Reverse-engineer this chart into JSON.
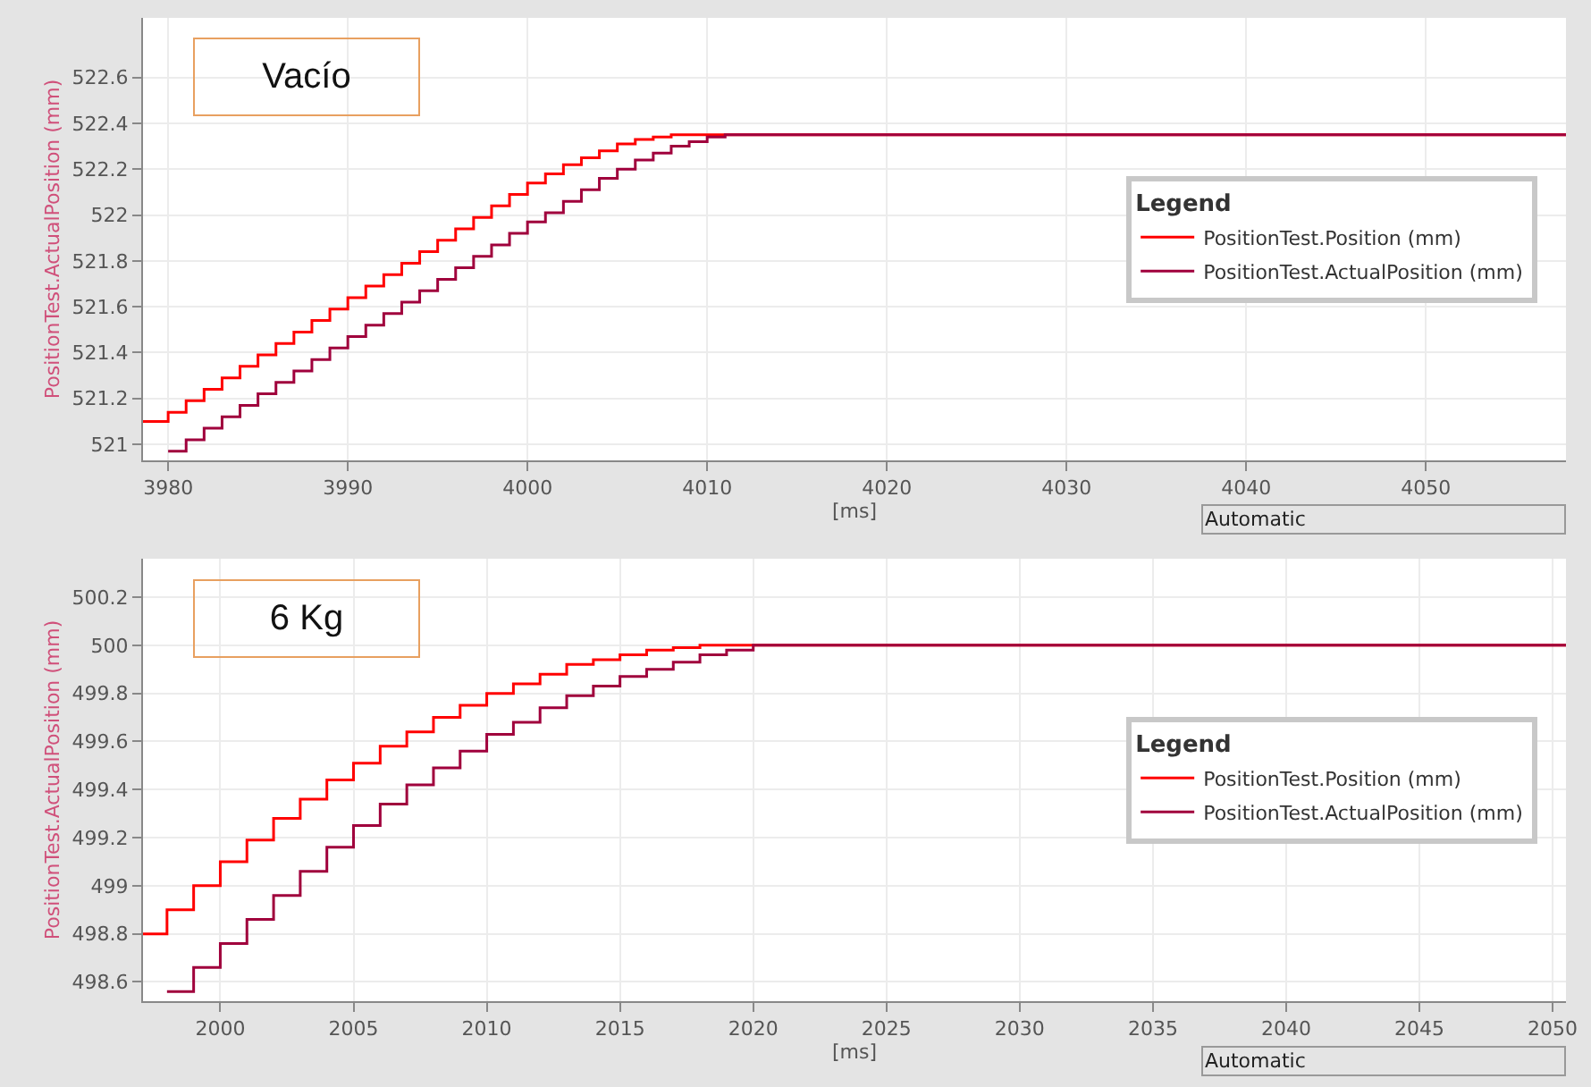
{
  "chart_data": [
    {
      "type": "step",
      "title": "Vacío",
      "xlabel": "[ms]",
      "ylabel": "PositionTest.ActualPosition (mm)",
      "legend_title": "Legend",
      "legend": "right",
      "grid": true,
      "annotations": [
        "Automatic"
      ],
      "xlim": [
        3978.6,
        4057.8
      ],
      "xticks": [
        3980,
        3990,
        4000,
        4010,
        4020,
        4030,
        4040,
        4050
      ],
      "ylim": [
        520.93,
        522.86
      ],
      "yticks": [
        521,
        521.2,
        521.4,
        521.6,
        521.8,
        522,
        522.2,
        522.4,
        522.6
      ],
      "series": [
        {
          "name": "PositionTest.Position (mm)",
          "color": "#ff0000",
          "x": [
            3978.6,
            3980,
            3981,
            3982,
            3983,
            3984,
            3985,
            3986,
            3987,
            3988,
            3989,
            3990,
            3991,
            3992,
            3993,
            3994,
            3995,
            3996,
            3997,
            3998,
            3999,
            4000,
            4001,
            4002,
            4003,
            4004,
            4005,
            4006,
            4007,
            4008,
            4057.8
          ],
          "values": [
            521.1,
            521.14,
            521.19,
            521.24,
            521.29,
            521.34,
            521.39,
            521.44,
            521.49,
            521.54,
            521.59,
            521.64,
            521.69,
            521.74,
            521.79,
            521.84,
            521.89,
            521.94,
            521.99,
            522.04,
            522.09,
            522.14,
            522.18,
            522.22,
            522.25,
            522.28,
            522.31,
            522.33,
            522.34,
            522.35,
            522.35
          ]
        },
        {
          "name": "PositionTest.ActualPosition (mm)",
          "color": "#a0003c",
          "x": [
            3980,
            3981,
            3982,
            3983,
            3984,
            3985,
            3986,
            3987,
            3988,
            3989,
            3990,
            3991,
            3992,
            3993,
            3994,
            3995,
            3996,
            3997,
            3998,
            3999,
            4000,
            4001,
            4002,
            4003,
            4004,
            4005,
            4006,
            4007,
            4008,
            4009,
            4010,
            4011,
            4057.8
          ],
          "values": [
            520.97,
            521.02,
            521.07,
            521.12,
            521.17,
            521.22,
            521.27,
            521.32,
            521.37,
            521.42,
            521.47,
            521.52,
            521.57,
            521.62,
            521.67,
            521.72,
            521.77,
            521.82,
            521.87,
            521.92,
            521.97,
            522.01,
            522.06,
            522.11,
            522.16,
            522.2,
            522.24,
            522.27,
            522.3,
            522.32,
            522.34,
            522.35,
            522.35
          ]
        }
      ]
    },
    {
      "type": "step",
      "title": "6 Kg",
      "xlabel": "[ms]",
      "ylabel": "PositionTest.ActualPosition (mm)",
      "legend_title": "Legend",
      "legend": "right",
      "grid": true,
      "annotations": [
        "Automatic"
      ],
      "xlim": [
        1997.1,
        2050.5
      ],
      "xticks": [
        2000,
        2005,
        2010,
        2015,
        2020,
        2025,
        2030,
        2035,
        2040,
        2045,
        2050
      ],
      "ylim": [
        498.52,
        500.36
      ],
      "yticks": [
        498.6,
        498.8,
        499,
        499.2,
        499.4,
        499.6,
        499.8,
        500,
        500.2
      ],
      "series": [
        {
          "name": "PositionTest.Position (mm)",
          "color": "#ff0000",
          "x": [
            1997.1,
            1998,
            1999,
            2000,
            2001,
            2002,
            2003,
            2004,
            2005,
            2006,
            2007,
            2008,
            2009,
            2010,
            2011,
            2012,
            2013,
            2014,
            2015,
            2016,
            2017,
            2018,
            2050.5
          ],
          "values": [
            498.8,
            498.9,
            499.0,
            499.1,
            499.19,
            499.28,
            499.36,
            499.44,
            499.51,
            499.58,
            499.64,
            499.7,
            499.75,
            499.8,
            499.84,
            499.88,
            499.92,
            499.94,
            499.96,
            499.98,
            499.99,
            500.0,
            500.0
          ]
        },
        {
          "name": "PositionTest.ActualPosition (mm)",
          "color": "#a0003c",
          "x": [
            1998,
            1999,
            2000,
            2001,
            2002,
            2003,
            2004,
            2005,
            2006,
            2007,
            2008,
            2009,
            2010,
            2011,
            2012,
            2013,
            2014,
            2015,
            2016,
            2017,
            2018,
            2019,
            2020,
            2050.5
          ],
          "values": [
            498.56,
            498.66,
            498.76,
            498.86,
            498.96,
            499.06,
            499.16,
            499.25,
            499.34,
            499.42,
            499.49,
            499.56,
            499.63,
            499.68,
            499.74,
            499.79,
            499.83,
            499.87,
            499.9,
            499.93,
            499.96,
            499.98,
            500.0,
            500.0
          ]
        }
      ]
    }
  ]
}
